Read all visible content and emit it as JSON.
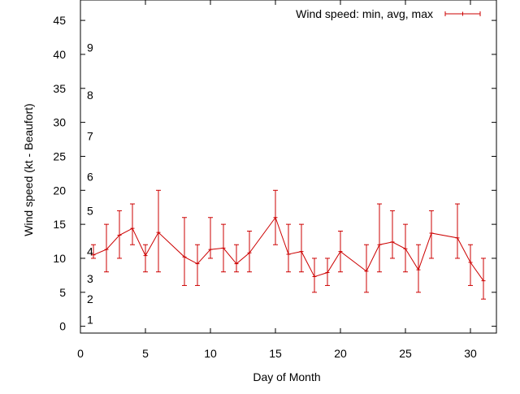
{
  "chart_data": {
    "type": "line",
    "title": "",
    "xlabel": "Day of Month",
    "ylabel": "Wind speed (kt - Beaufort)",
    "xlim": [
      0,
      32
    ],
    "ylim": [
      -1,
      48
    ],
    "x_ticks": [
      0,
      5,
      10,
      15,
      20,
      25,
      30
    ],
    "y_ticks": [
      0,
      5,
      10,
      15,
      20,
      25,
      30,
      35,
      40,
      45
    ],
    "beaufort_labels": [
      {
        "label": "1",
        "y": 1
      },
      {
        "label": "2",
        "y": 4
      },
      {
        "label": "3",
        "y": 7
      },
      {
        "label": "4",
        "y": 11
      },
      {
        "label": "5",
        "y": 17
      },
      {
        "label": "6",
        "y": 22
      },
      {
        "label": "7",
        "y": 28
      },
      {
        "label": "8",
        "y": 34
      },
      {
        "label": "9",
        "y": 41
      }
    ],
    "grid": false,
    "legend_position": "top-right",
    "series": [
      {
        "name": "Wind speed: min, avg, max",
        "color": "#cc0000",
        "x": [
          1,
          2,
          3,
          4,
          5,
          6,
          8,
          9,
          10,
          11,
          12,
          13,
          15,
          16,
          17,
          18,
          19,
          20,
          22,
          23,
          24,
          25,
          26,
          27,
          29,
          30,
          31
        ],
        "avg": [
          10.5,
          11.3,
          13.4,
          14.4,
          10.4,
          13.8,
          10.2,
          9.2,
          11.3,
          11.5,
          9.2,
          10.8,
          16.0,
          10.6,
          11.0,
          7.3,
          7.9,
          11.0,
          8.1,
          12.0,
          12.4,
          11.4,
          8.3,
          13.7,
          13.0,
          9.4,
          6.7
        ],
        "min": [
          10,
          8,
          10,
          12,
          8,
          8,
          6,
          6,
          10,
          8,
          8,
          8,
          12,
          8,
          8,
          5,
          6,
          8,
          5,
          8,
          10,
          8,
          5,
          10,
          10,
          6,
          4
        ],
        "max": [
          12,
          15,
          17,
          18,
          12,
          20,
          16,
          12,
          16,
          15,
          12,
          14,
          20,
          15,
          15,
          10,
          10,
          14,
          12,
          18,
          17,
          15,
          12,
          17,
          18,
          12,
          10
        ]
      }
    ]
  }
}
